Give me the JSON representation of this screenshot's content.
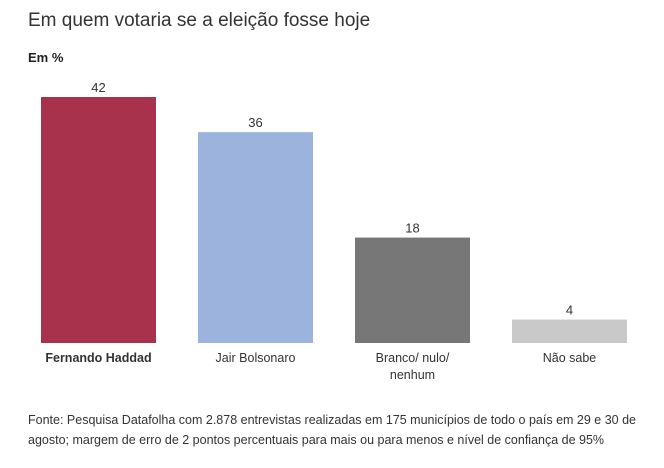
{
  "title": "Em quem votaria se a eleição fosse hoje",
  "unit_label": "Em %",
  "source": "Fonte: Pesquisa Datafolha com 2.878 entrevistas realizadas em 175 municípios de todo o país em 29 e 30 de agosto; margem de erro de 2 pontos percentuais para mais ou para menos e nível de confiança de 95%",
  "chart_data": {
    "type": "bar",
    "title": "Em quem votaria se a eleição fosse hoje",
    "ylabel": "Em %",
    "xlabel": "",
    "categories": [
      [
        "Fernando Haddad"
      ],
      [
        "Jair Bolsonaro"
      ],
      [
        "Branco/ nulo/",
        "nenhum"
      ],
      [
        "Não sabe"
      ]
    ],
    "category_bold": [
      true,
      false,
      false,
      false
    ],
    "values": [
      42,
      36,
      18,
      4
    ],
    "colors": [
      "#a8314b",
      "#9cb3de",
      "#777777",
      "#c9c9c9"
    ],
    "ylim": [
      0,
      42
    ],
    "grid": false,
    "legend": "none"
  }
}
